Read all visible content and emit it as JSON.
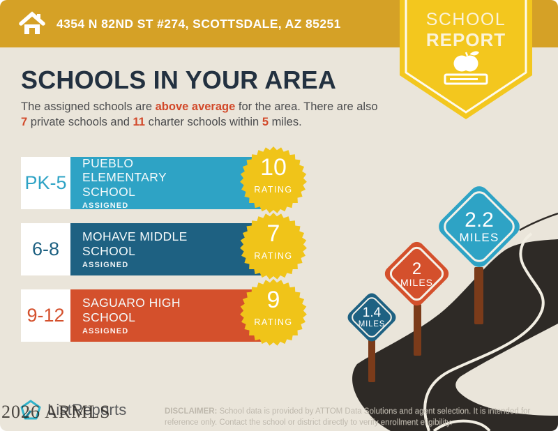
{
  "header": {
    "address": "4354 N 82ND ST #274, SCOTTSDALE, AZ 85251",
    "badge_line1": "SCHOOL",
    "badge_line2": "REPORT"
  },
  "title": "SCHOOLS IN YOUR AREA",
  "intro": {
    "segments": [
      {
        "text": "The assigned schools are "
      },
      {
        "text": "above average",
        "highlight": true
      },
      {
        "text": " for the area. There are also "
      },
      {
        "text": "7",
        "highlight": true
      },
      {
        "text": " private schools and "
      },
      {
        "text": "11",
        "highlight": true
      },
      {
        "text": " charter schools within "
      },
      {
        "text": "5",
        "highlight": true
      },
      {
        "text": " miles."
      }
    ]
  },
  "schools": [
    {
      "grades": "PK-5",
      "name_line1": "PUEBLO ELEMENTARY",
      "name_line2": "SCHOOL",
      "status": "ASSIGNED",
      "rating": "10",
      "rating_label": "RATING",
      "color": "#2EA3C5"
    },
    {
      "grades": "6-8",
      "name_line1": "MOHAVE MIDDLE",
      "name_line2": "SCHOOL",
      "status": "ASSIGNED",
      "rating": "7",
      "rating_label": "RATING",
      "color": "#1E6182"
    },
    {
      "grades": "9-12",
      "name_line1": "SAGUARO HIGH",
      "name_line2": "SCHOOL",
      "status": "ASSIGNED",
      "rating": "9",
      "rating_label": "RATING",
      "color": "#D4502C"
    }
  ],
  "distance_signs": [
    {
      "value": "1.4",
      "unit": "MILES",
      "color": "#1E6182"
    },
    {
      "value": "2",
      "unit": "MILES",
      "color": "#D4502C"
    },
    {
      "value": "2.2",
      "unit": "MILES",
      "color": "#2EA3C5"
    }
  ],
  "footer": {
    "logo_text": "ListReports",
    "watermark": "2026 ARMLS",
    "disclaimer_label": "DISCLAIMER:",
    "disclaimer_text": " School data is provided by ATTOM Data Solutions and agent selection. It is intended for reference only. Contact the school or district directly to verify enrollment eligibility."
  },
  "colors": {
    "top_bar_gold": "#D5A126",
    "badge_yellow": "#F3C71E",
    "starburst_yellow": "#F0C419",
    "title_navy": "#233140",
    "body_text": "#4B4C4E",
    "accent_orange": "#D2492A",
    "teal": "#2EA3C5",
    "dark_blue": "#1E6182",
    "orange_red": "#D4502C",
    "road_dark": "#2E2A26",
    "post_brown": "#7B3B1A",
    "background_beige": "#EAE5DA",
    "logo_teal": "#2FB3CB"
  }
}
